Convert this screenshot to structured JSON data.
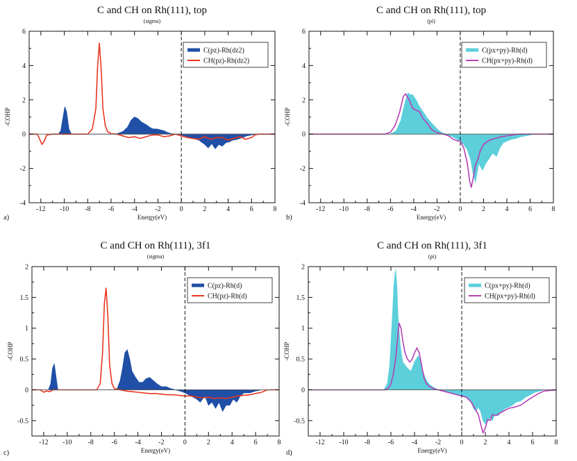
{
  "chart_data": [
    {
      "panel_label": "a)",
      "title": "C and CH on Rh(111), top",
      "subtitle": "(sigma)",
      "type": "area",
      "xlabel": "Energy(eV)",
      "ylabel": "-COHP",
      "xlim": [
        -13,
        8
      ],
      "ylim": [
        -4,
        6
      ],
      "xticks": [
        -12,
        -10,
        -8,
        -6,
        -4,
        -2,
        0,
        2,
        4,
        6,
        8
      ],
      "yticks": [
        -4,
        -2,
        0,
        2,
        4,
        6
      ],
      "fermi_level": 0,
      "legend_position": "top-right",
      "series": [
        {
          "name": "C(pz)-Rh(dz2)",
          "style": "filled",
          "color": "#1f4fa6",
          "x": [
            -10.5,
            -10.3,
            -10.1,
            -9.95,
            -9.8,
            -9.6,
            -9.4,
            -5.6,
            -5.0,
            -4.6,
            -4.3,
            -4.0,
            -3.7,
            -3.4,
            -3.0,
            -2.7,
            -2.4,
            -2.1,
            -1.8,
            -1.5,
            -1.2,
            -0.8,
            -0.3,
            0.0,
            0.5,
            1.0,
            1.5,
            2.0,
            2.3,
            2.6,
            2.9,
            3.2,
            3.5,
            3.8,
            4.1,
            4.4,
            4.8,
            5.2,
            5.6,
            6.0,
            6.4
          ],
          "y": [
            0,
            0.2,
            1.0,
            1.6,
            1.3,
            0.3,
            0,
            0,
            0.15,
            0.4,
            0.8,
            1.0,
            0.9,
            0.7,
            0.55,
            0.4,
            0.3,
            0.3,
            0.25,
            0.2,
            0.1,
            0.02,
            0,
            -0.05,
            -0.15,
            -0.25,
            -0.35,
            -0.6,
            -0.8,
            -0.55,
            -0.85,
            -0.6,
            -0.7,
            -0.5,
            -0.45,
            -0.35,
            -0.3,
            -0.2,
            -0.1,
            -0.05,
            0
          ]
        },
        {
          "name": "CH(pz)-Rh(dz2)",
          "style": "line",
          "color": "#e8361f",
          "x": [
            -13,
            -12.3,
            -12.1,
            -11.9,
            -11.7,
            -11.5,
            -11.0,
            -8.0,
            -7.6,
            -7.3,
            -7.15,
            -7.0,
            -6.85,
            -6.7,
            -6.5,
            -6.3,
            -6.0,
            -5.5,
            -5.0,
            -4.5,
            -4.0,
            -3.5,
            -3.0,
            -2.5,
            -2.0,
            -1.5,
            -1.0,
            -0.5,
            0.0,
            0.5,
            1.0,
            1.5,
            2.0,
            2.5,
            3.0,
            3.5,
            4.0,
            4.5,
            5.0,
            5.5,
            6.0,
            6.3,
            6.6,
            7.0,
            8.0
          ],
          "y": [
            0,
            0,
            -0.3,
            -0.6,
            -0.4,
            -0.05,
            0,
            0,
            0.3,
            1.5,
            4.0,
            5.3,
            3.8,
            1.5,
            0.5,
            0.15,
            0.03,
            0,
            -0.1,
            -0.2,
            -0.15,
            -0.25,
            -0.15,
            -0.05,
            -0.05,
            -0.15,
            -0.1,
            0,
            -0.1,
            -0.2,
            -0.25,
            -0.3,
            -0.15,
            -0.3,
            -0.2,
            -0.2,
            -0.35,
            -0.25,
            -0.15,
            -0.3,
            -0.2,
            -0.05,
            0,
            0,
            0
          ]
        }
      ]
    },
    {
      "panel_label": "b)",
      "title": "C and CH on Rh(111), top",
      "subtitle": "(pi)",
      "type": "area",
      "xlabel": "Energy(eV)",
      "ylabel": "-COHP",
      "xlim": [
        -13,
        8
      ],
      "ylim": [
        -4,
        6
      ],
      "xticks": [
        -12,
        -10,
        -8,
        -6,
        -4,
        -2,
        0,
        2,
        4,
        6,
        8
      ],
      "yticks": [
        -4,
        -2,
        0,
        2,
        4,
        6
      ],
      "fermi_level": 0,
      "legend_position": "top-right",
      "series": [
        {
          "name": "C(px+py)-Rh(d)",
          "style": "filled",
          "color": "#5ccfdb",
          "x": [
            -6.0,
            -5.5,
            -5.1,
            -4.8,
            -4.5,
            -4.3,
            -4.1,
            -3.8,
            -3.5,
            -3.2,
            -2.8,
            -2.4,
            -2.0,
            -1.6,
            -1.2,
            -0.8,
            -0.4,
            0.0,
            0.3,
            0.6,
            0.9,
            1.1,
            1.3,
            1.6,
            1.9,
            2.2,
            2.5,
            2.8,
            3.1,
            3.4,
            3.7,
            4.0,
            4.4,
            4.8,
            5.2,
            5.6,
            6.0,
            6.5,
            7.0,
            8.0
          ],
          "y": [
            0,
            0.2,
            0.8,
            1.7,
            2.4,
            2.3,
            2.3,
            2.0,
            1.6,
            1.3,
            0.9,
            0.6,
            0.3,
            0.1,
            0,
            -0.1,
            -0.25,
            -0.4,
            -0.6,
            -0.9,
            -1.5,
            -2.3,
            -2.8,
            -1.7,
            -2.1,
            -1.7,
            -1.4,
            -1.1,
            -1.3,
            -0.8,
            -0.5,
            -0.4,
            -0.3,
            -0.25,
            -0.15,
            -0.1,
            -0.05,
            0,
            0,
            0
          ]
        },
        {
          "name": "CH(px+py)-Rh(d)",
          "style": "line",
          "color": "#b540b5",
          "x": [
            -13,
            -6.5,
            -6.0,
            -5.6,
            -5.2,
            -4.9,
            -4.7,
            -4.4,
            -4.1,
            -3.8,
            -3.5,
            -3.2,
            -2.8,
            -2.5,
            -2.2,
            -1.8,
            -1.4,
            -1.0,
            -0.6,
            -0.2,
            0.0,
            0.3,
            0.6,
            0.8,
            0.95,
            1.1,
            1.3,
            1.5,
            1.7,
            2.0,
            2.5,
            3.0,
            3.5,
            4.0,
            4.5,
            5.0,
            6.0,
            7.0,
            8.0
          ],
          "y": [
            0,
            0,
            0.1,
            0.5,
            1.3,
            2.2,
            2.35,
            2.0,
            1.5,
            1.4,
            1.3,
            0.9,
            0.6,
            0.3,
            0.15,
            0.05,
            0,
            -0.1,
            -0.3,
            -0.4,
            -0.4,
            -0.8,
            -1.7,
            -2.7,
            -3.1,
            -2.6,
            -1.8,
            -1.5,
            -1.0,
            -0.6,
            -0.35,
            -0.25,
            -0.15,
            -0.1,
            -0.05,
            0,
            0,
            0,
            0
          ]
        }
      ]
    },
    {
      "panel_label": "c)",
      "title": "C and CH on Rh(111), 3f1",
      "subtitle": "(sigma)",
      "type": "area",
      "xlabel": "Energy(eV)",
      "ylabel": "-COHP",
      "xlim": [
        -13,
        8
      ],
      "ylim": [
        -0.75,
        2
      ],
      "xticks": [
        -12,
        -10,
        -8,
        -6,
        -4,
        -2,
        0,
        2,
        4,
        6,
        8
      ],
      "yticks": [
        -0.5,
        0,
        0.5,
        1,
        1.5,
        2
      ],
      "fermi_level": 0,
      "legend_position": "top-right",
      "series": [
        {
          "name": "C(pz)-Rh(d)",
          "style": "filled",
          "color": "#1f4fa6",
          "x": [
            -11.6,
            -11.4,
            -11.25,
            -11.1,
            -10.95,
            -10.8,
            -5.8,
            -5.5,
            -5.3,
            -5.1,
            -4.9,
            -4.7,
            -4.5,
            -4.2,
            -3.9,
            -3.6,
            -3.3,
            -3.0,
            -2.7,
            -2.4,
            -2.0,
            -1.6,
            -1.2,
            -0.8,
            -0.4,
            0.0,
            0.5,
            1.0,
            1.3,
            1.7,
            2.0,
            2.3,
            2.6,
            2.9,
            3.2,
            3.5,
            3.8,
            4.1,
            4.4,
            4.7,
            5.0,
            5.5,
            6.0,
            6.5
          ],
          "y": [
            0,
            0.1,
            0.35,
            0.42,
            0.2,
            0,
            0,
            0.15,
            0.35,
            0.6,
            0.65,
            0.5,
            0.3,
            0.2,
            0.12,
            0.12,
            0.18,
            0.2,
            0.15,
            0.1,
            0.05,
            0.05,
            0.02,
            0,
            -0.02,
            -0.05,
            -0.1,
            -0.15,
            -0.2,
            -0.1,
            -0.25,
            -0.2,
            -0.3,
            -0.2,
            -0.35,
            -0.25,
            -0.25,
            -0.15,
            -0.2,
            -0.1,
            -0.05,
            -0.05,
            -0.02,
            0
          ]
        },
        {
          "name": "CH(pz)-Rh(d)",
          "style": "line",
          "color": "#e8361f",
          "x": [
            -13,
            -12.3,
            -12.0,
            -11.8,
            -11.5,
            -11.2,
            -10.5,
            -7.5,
            -7.2,
            -7.0,
            -6.85,
            -6.7,
            -6.55,
            -6.4,
            -6.2,
            -6.0,
            -5.5,
            -5.0,
            -4.5,
            -4.0,
            -3.5,
            -3.0,
            -2.5,
            -2.0,
            -1.5,
            -1.0,
            -0.5,
            0.0,
            0.5,
            1.0,
            1.5,
            2.0,
            2.5,
            3.0,
            3.5,
            4.0,
            4.5,
            5.0,
            5.5,
            6.0,
            6.5,
            7.0,
            8.0
          ],
          "y": [
            0,
            0,
            -0.04,
            -0.02,
            -0.03,
            0,
            0,
            0,
            0.1,
            0.6,
            1.4,
            1.65,
            1.2,
            0.4,
            0.1,
            0.02,
            0,
            -0.02,
            -0.03,
            -0.04,
            -0.05,
            -0.06,
            -0.06,
            -0.07,
            -0.08,
            -0.08,
            -0.09,
            -0.1,
            -0.1,
            -0.12,
            -0.13,
            -0.12,
            -0.14,
            -0.13,
            -0.14,
            -0.12,
            -0.1,
            -0.09,
            -0.08,
            -0.06,
            -0.04,
            0,
            0
          ]
        }
      ]
    },
    {
      "panel_label": "d)",
      "title": "C and CH on Rh(111), 3f1",
      "subtitle": "(pi)",
      "type": "area",
      "xlabel": "Energy(eV)",
      "ylabel": "-COHP",
      "xlim": [
        -13,
        8
      ],
      "ylim": [
        -0.75,
        2
      ],
      "xticks": [
        -12,
        -10,
        -8,
        -6,
        -4,
        -2,
        0,
        2,
        4,
        6,
        8
      ],
      "yticks": [
        -0.5,
        0,
        0.5,
        1,
        1.5,
        2
      ],
      "fermi_level": 0,
      "legend_position": "top-right",
      "series": [
        {
          "name": "C(px+py)-Rh(d)",
          "style": "filled",
          "color": "#5ccfdb",
          "x": [
            -6.6,
            -6.3,
            -6.1,
            -5.9,
            -5.75,
            -5.6,
            -5.5,
            -5.4,
            -5.2,
            -5.0,
            -4.8,
            -4.6,
            -4.3,
            -4.0,
            -3.7,
            -3.5,
            -3.3,
            -3.0,
            -2.7,
            -2.4,
            -2.0,
            -1.6,
            -1.2,
            -0.8,
            -0.4,
            0.0,
            0.4,
            0.8,
            1.0,
            1.2,
            1.4,
            1.6,
            1.8,
            2.0,
            2.2,
            2.4,
            2.6,
            2.8,
            3.1,
            3.4,
            3.7,
            4.0,
            4.3,
            4.6,
            5.0,
            5.4,
            5.8,
            6.2,
            6.6,
            7.0,
            8.0
          ],
          "y": [
            0,
            0.1,
            0.4,
            1.1,
            1.7,
            1.95,
            1.7,
            1.2,
            0.7,
            0.45,
            0.4,
            0.35,
            0.3,
            0.45,
            0.55,
            0.5,
            0.3,
            0.15,
            0.08,
            0.04,
            0,
            -0.02,
            -0.03,
            -0.05,
            -0.08,
            -0.1,
            -0.13,
            -0.2,
            -0.3,
            -0.35,
            -0.28,
            -0.35,
            -0.5,
            -0.55,
            -0.5,
            -0.45,
            -0.5,
            -0.4,
            -0.42,
            -0.35,
            -0.3,
            -0.28,
            -0.25,
            -0.2,
            -0.18,
            -0.12,
            -0.08,
            -0.04,
            -0.02,
            0,
            0
          ]
        },
        {
          "name": "CH(px+py)-Rh(d)",
          "style": "line",
          "color": "#b540b5",
          "x": [
            -13,
            -6.5,
            -6.2,
            -6.0,
            -5.8,
            -5.6,
            -5.4,
            -5.3,
            -5.15,
            -5.0,
            -4.8,
            -4.6,
            -4.4,
            -4.2,
            -4.0,
            -3.8,
            -3.6,
            -3.4,
            -3.2,
            -3.0,
            -2.7,
            -2.4,
            -2.0,
            -1.6,
            -1.2,
            -0.8,
            -0.4,
            0.0,
            0.4,
            0.8,
            1.1,
            1.4,
            1.6,
            1.8,
            2.0,
            2.2,
            2.4,
            2.6,
            2.9,
            3.2,
            3.5,
            4.0,
            4.5,
            5.0,
            5.5,
            6.0,
            6.5,
            7.0,
            8.0
          ],
          "y": [
            0,
            0,
            0.03,
            0.1,
            0.25,
            0.5,
            0.9,
            1.08,
            1.0,
            0.8,
            0.6,
            0.5,
            0.45,
            0.5,
            0.6,
            0.68,
            0.6,
            0.4,
            0.2,
            0.1,
            0.05,
            0.02,
            0,
            -0.02,
            -0.04,
            -0.06,
            -0.08,
            -0.1,
            -0.12,
            -0.2,
            -0.3,
            -0.4,
            -0.55,
            -0.7,
            -0.62,
            -0.48,
            -0.5,
            -0.4,
            -0.42,
            -0.38,
            -0.35,
            -0.3,
            -0.28,
            -0.25,
            -0.18,
            -0.12,
            -0.06,
            -0.02,
            0
          ]
        }
      ]
    }
  ]
}
